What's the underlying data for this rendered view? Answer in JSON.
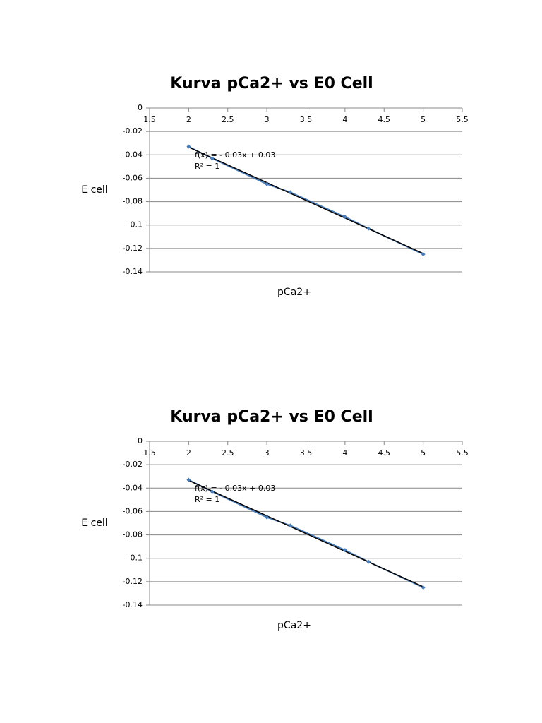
{
  "chart_data": [
    {
      "type": "scatter",
      "title": "Kurva pCa2+ vs E0 Cell",
      "x_label": "pCa2+",
      "y_label": "E cell",
      "x": [
        2,
        2.3,
        3,
        3.3,
        4,
        4.3,
        5
      ],
      "values": [
        -0.033,
        -0.043,
        -0.065,
        -0.072,
        -0.093,
        -0.103,
        -0.125
      ],
      "color": "#4a7ebb",
      "lines": true,
      "trendline": "linear",
      "trendline_color": "#000000",
      "annotations": [
        "f(x) =  - 0.03x + 0.03",
        "R² = 1"
      ],
      "xlim": [
        1.5,
        5.5
      ],
      "xticks": [
        1.5,
        2,
        2.5,
        3,
        3.5,
        4,
        4.5,
        5,
        5.5
      ],
      "ylim": [
        -0.14,
        0
      ],
      "yticks": [
        0,
        -0.02,
        -0.04,
        -0.06,
        -0.08,
        -0.1,
        -0.12,
        -0.14
      ],
      "grid": true
    },
    {
      "type": "scatter",
      "title": "Kurva pCa2+ vs E0 Cell",
      "x_label": "pCa2+",
      "y_label": "E cell",
      "x": [
        2,
        2.3,
        3,
        3.3,
        4,
        4.3,
        5
      ],
      "values": [
        -0.033,
        -0.043,
        -0.065,
        -0.072,
        -0.093,
        -0.103,
        -0.125
      ],
      "color": "#4a7ebb",
      "lines": true,
      "trendline": "linear",
      "trendline_color": "#000000",
      "annotations": [
        "f(x) =  - 0.03x + 0.03",
        "R² = 1"
      ],
      "xlim": [
        1.5,
        5.5
      ],
      "xticks": [
        1.5,
        2,
        2.5,
        3,
        3.5,
        4,
        4.5,
        5,
        5.5
      ],
      "ylim": [
        -0.14,
        0
      ],
      "yticks": [
        0,
        -0.02,
        -0.04,
        -0.06,
        -0.08,
        -0.1,
        -0.12,
        -0.14
      ],
      "grid": true
    }
  ]
}
